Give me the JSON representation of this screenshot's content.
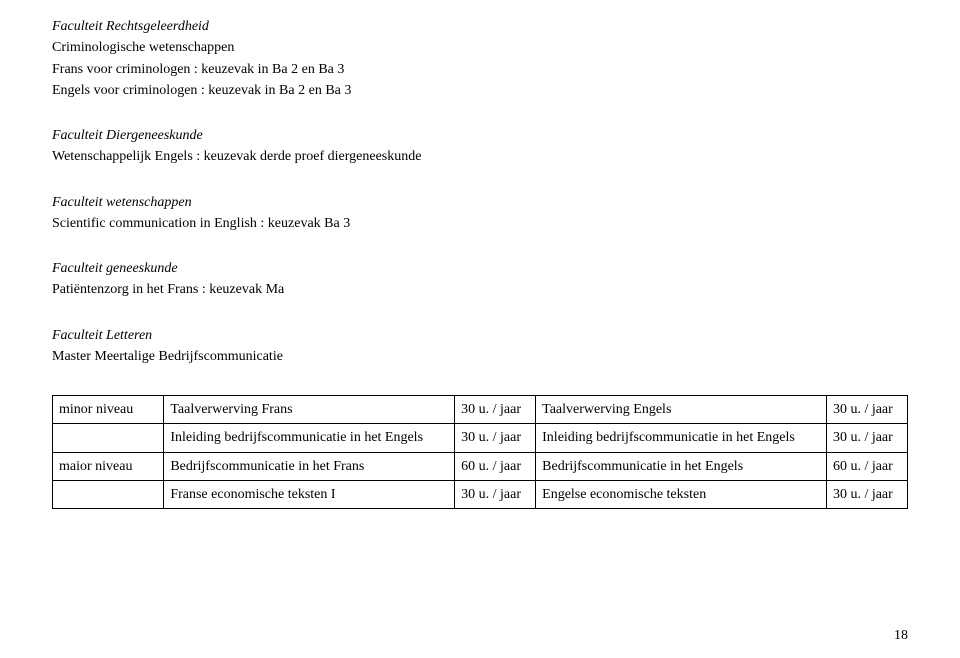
{
  "sections": {
    "s1": {
      "title": "Faculteit Rechtsgeleerdheid",
      "sub": "Criminologische wetenschappen",
      "l1": "Frans voor criminologen : keuzevak in Ba 2 en Ba 3",
      "l2": "Engels voor criminologen : keuzevak in Ba 2 en Ba 3"
    },
    "s2": {
      "title": "Faculteit Diergeneeskunde",
      "l1": "Wetenschappelijk Engels : keuzevak derde proef diergeneeskunde"
    },
    "s3": {
      "title": "Faculteit wetenschappen",
      "l1": "Scientific communication in English : keuzevak Ba 3"
    },
    "s4": {
      "title": "Faculteit geneeskunde",
      "l1": "Patiëntenzorg in het Frans : keuzevak Ma"
    },
    "s5": {
      "title": "Faculteit Letteren",
      "l1": "Master Meertalige Bedrijfscommunicatie"
    }
  },
  "table": {
    "r1": {
      "level": "minor niveau",
      "c1": "Taalverwerving Frans",
      "h1": "30 u. / jaar",
      "c2": "Taalverwerving Engels",
      "h2": "30 u. / jaar"
    },
    "r2": {
      "level": "",
      "c1": "Inleiding bedrijfscommunicatie in het Engels",
      "h1": "30 u. / jaar",
      "c2": "Inleiding bedrijfscommunicatie in het Engels",
      "h2": "30 u. / jaar"
    },
    "r3": {
      "level": "maior niveau",
      "c1": "Bedrijfscommunicatie in het Frans",
      "h1": "60 u. / jaar",
      "c2": "Bedrijfscommunicatie in het Engels",
      "h2": "60 u. / jaar"
    },
    "r4": {
      "level": "",
      "c1": "Franse economische teksten I",
      "h1": "30 u. / jaar",
      "c2": "Engelse economische teksten",
      "h2": "30 u. / jaar"
    }
  },
  "pageNumber": "18"
}
